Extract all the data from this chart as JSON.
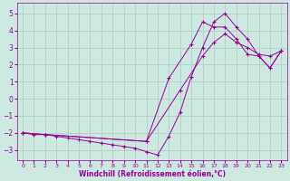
{
  "title": "",
  "xlabel": "Windchill (Refroidissement éolien,°C)",
  "ylabel": "",
  "xlim": [
    -0.5,
    23.5
  ],
  "ylim": [
    -3.6,
    5.6
  ],
  "xticks": [
    0,
    1,
    2,
    3,
    4,
    5,
    6,
    7,
    8,
    9,
    10,
    11,
    12,
    13,
    14,
    15,
    16,
    17,
    18,
    19,
    20,
    21,
    22,
    23
  ],
  "yticks": [
    -3,
    -2,
    -1,
    0,
    1,
    2,
    3,
    4,
    5
  ],
  "background_color": "#cce8e0",
  "line_color": "#990099",
  "grid_color": "#aaccbb",
  "curves": [
    {
      "x": [
        0,
        1,
        2,
        3,
        4,
        5,
        6,
        7,
        8,
        9,
        10,
        11,
        12,
        13,
        14,
        15,
        16,
        17,
        18,
        19,
        20,
        21,
        22,
        23
      ],
      "y": [
        -2.0,
        -2.1,
        -2.1,
        -2.2,
        -2.3,
        -2.4,
        -2.5,
        -2.6,
        -2.7,
        -2.8,
        -2.9,
        -3.1,
        -3.3,
        -2.2,
        -0.8,
        1.3,
        3.0,
        4.5,
        5.0,
        4.2,
        3.5,
        2.5,
        1.8,
        2.8
      ]
    },
    {
      "x": [
        0,
        2,
        11,
        14,
        16,
        17,
        18,
        19,
        20,
        21,
        22,
        23
      ],
      "y": [
        -2.0,
        -2.1,
        -2.5,
        0.5,
        2.5,
        3.3,
        3.8,
        3.3,
        3.0,
        2.6,
        2.5,
        2.8
      ]
    },
    {
      "x": [
        0,
        2,
        11,
        13,
        15,
        16,
        17,
        18,
        19,
        20,
        21,
        22,
        23
      ],
      "y": [
        -2.0,
        -2.1,
        -2.5,
        1.2,
        3.2,
        4.5,
        4.2,
        4.2,
        3.5,
        2.6,
        2.5,
        1.8,
        2.8
      ]
    }
  ]
}
